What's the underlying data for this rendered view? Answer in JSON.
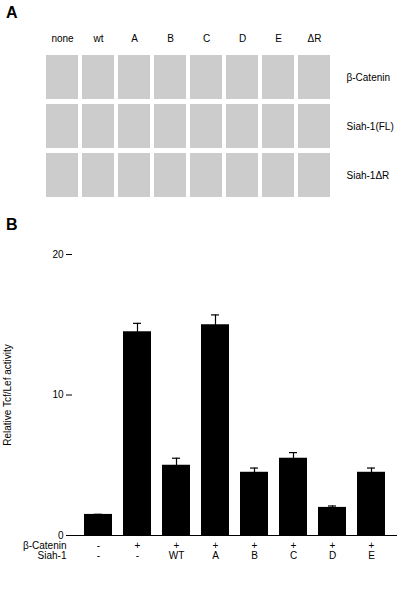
{
  "chart_data": [
    {
      "type": "blot",
      "panel_label": "A",
      "lanes": [
        "none",
        "wt",
        "A",
        "B",
        "C",
        "D",
        "E",
        "ΔR"
      ],
      "row_labels": [
        "β-Catenin",
        "Siah-1(FL)",
        "Siah-1ΔR"
      ]
    },
    {
      "type": "bar",
      "panel_label": "B",
      "categories": [
        [
          "-",
          "-"
        ],
        [
          "+",
          "-"
        ],
        [
          "+",
          "WT"
        ],
        [
          "+",
          "A"
        ],
        [
          "+",
          "B"
        ],
        [
          "+",
          "C"
        ],
        [
          "+",
          "D"
        ],
        [
          "+",
          "E"
        ]
      ],
      "category_rows": [
        "β-Catenin",
        "Siah-1"
      ],
      "values": [
        1.5,
        14.5,
        5.0,
        15.0,
        4.5,
        5.5,
        2.0,
        4.5
      ],
      "errors": [
        0.0,
        0.6,
        0.5,
        0.7,
        0.3,
        0.4,
        0.1,
        0.3
      ],
      "color": "#000000",
      "ylabel": "Relative Tcf/Lef activity",
      "ylim": [
        0,
        20
      ],
      "yticks": [
        0,
        10,
        20
      ]
    }
  ]
}
